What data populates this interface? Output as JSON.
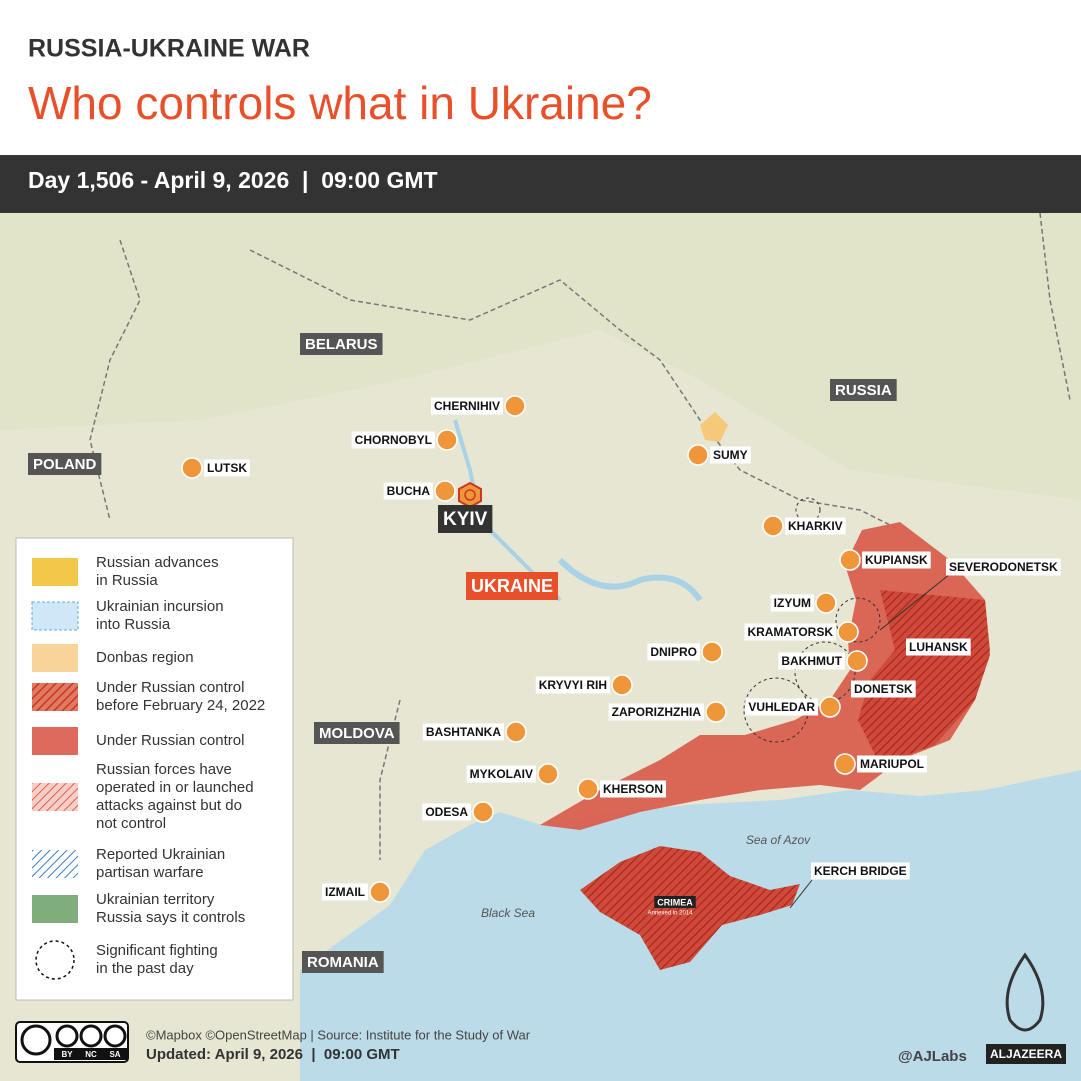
{
  "header": {
    "kicker": "RUSSIA-UKRAINE WAR",
    "title": "Who controls what in Ukraine?",
    "date_bar": "Day 1,506 - April 9, 2026  |  09:00 GMT"
  },
  "countries": [
    "BELARUS",
    "RUSSIA",
    "POLAND",
    "UKRAINE",
    "MOLDOVA",
    "ROMANIA"
  ],
  "cities": [
    "CHERNIHIV",
    "CHORNOBYL",
    "LUTSK",
    "SUMY",
    "BUCHA",
    "KHARKIV",
    "KUPIANSK",
    "IZYUM",
    "KRAMATORSK",
    "BAKHMUT",
    "DNIPRO",
    "KRYVYI RIH",
    "ZAPORIZHZHIA",
    "VUHLEDAR",
    "BASHTANKA",
    "MYKOLAIV",
    "KHERSON",
    "MARIUPOL",
    "ODESA",
    "IZMAIL"
  ],
  "regions": [
    "SEVERODONETSK",
    "LUHANSK",
    "DONETSK",
    "KERCH BRIDGE"
  ],
  "capital": "KYIV",
  "crimea": {
    "label": "CRIMEA",
    "note": "Annexed in 2014"
  },
  "seas": [
    "Sea of Azov",
    "Black Sea"
  ],
  "legend": [
    {
      "lines": [
        "Russian advances",
        "in Russia"
      ]
    },
    {
      "lines": [
        "Ukrainian incursion",
        "into Russia"
      ]
    },
    {
      "lines": [
        "Donbas region"
      ]
    },
    {
      "lines": [
        "Under Russian control",
        "before February 24, 2022"
      ]
    },
    {
      "lines": [
        "Under Russian control"
      ]
    },
    {
      "lines": [
        "Russian forces have",
        "operated in or launched",
        "attacks against but do",
        "not control"
      ]
    },
    {
      "lines": [
        "Reported Ukrainian",
        "partisan warfare"
      ]
    },
    {
      "lines": [
        "Ukrainian territory",
        "Russia says it controls"
      ]
    },
    {
      "lines": [
        "Significant fighting",
        "in the past day"
      ]
    }
  ],
  "footer": {
    "credits": "©Mapbox ©OpenStreetMap | Source: Institute for the Study of War",
    "updated": "Updated: April 9, 2026  |  09:00 GMT",
    "handle": "@AJLabs",
    "brand": "ALJAZEERA",
    "license": [
      "BY",
      "NC",
      "SA"
    ]
  }
}
